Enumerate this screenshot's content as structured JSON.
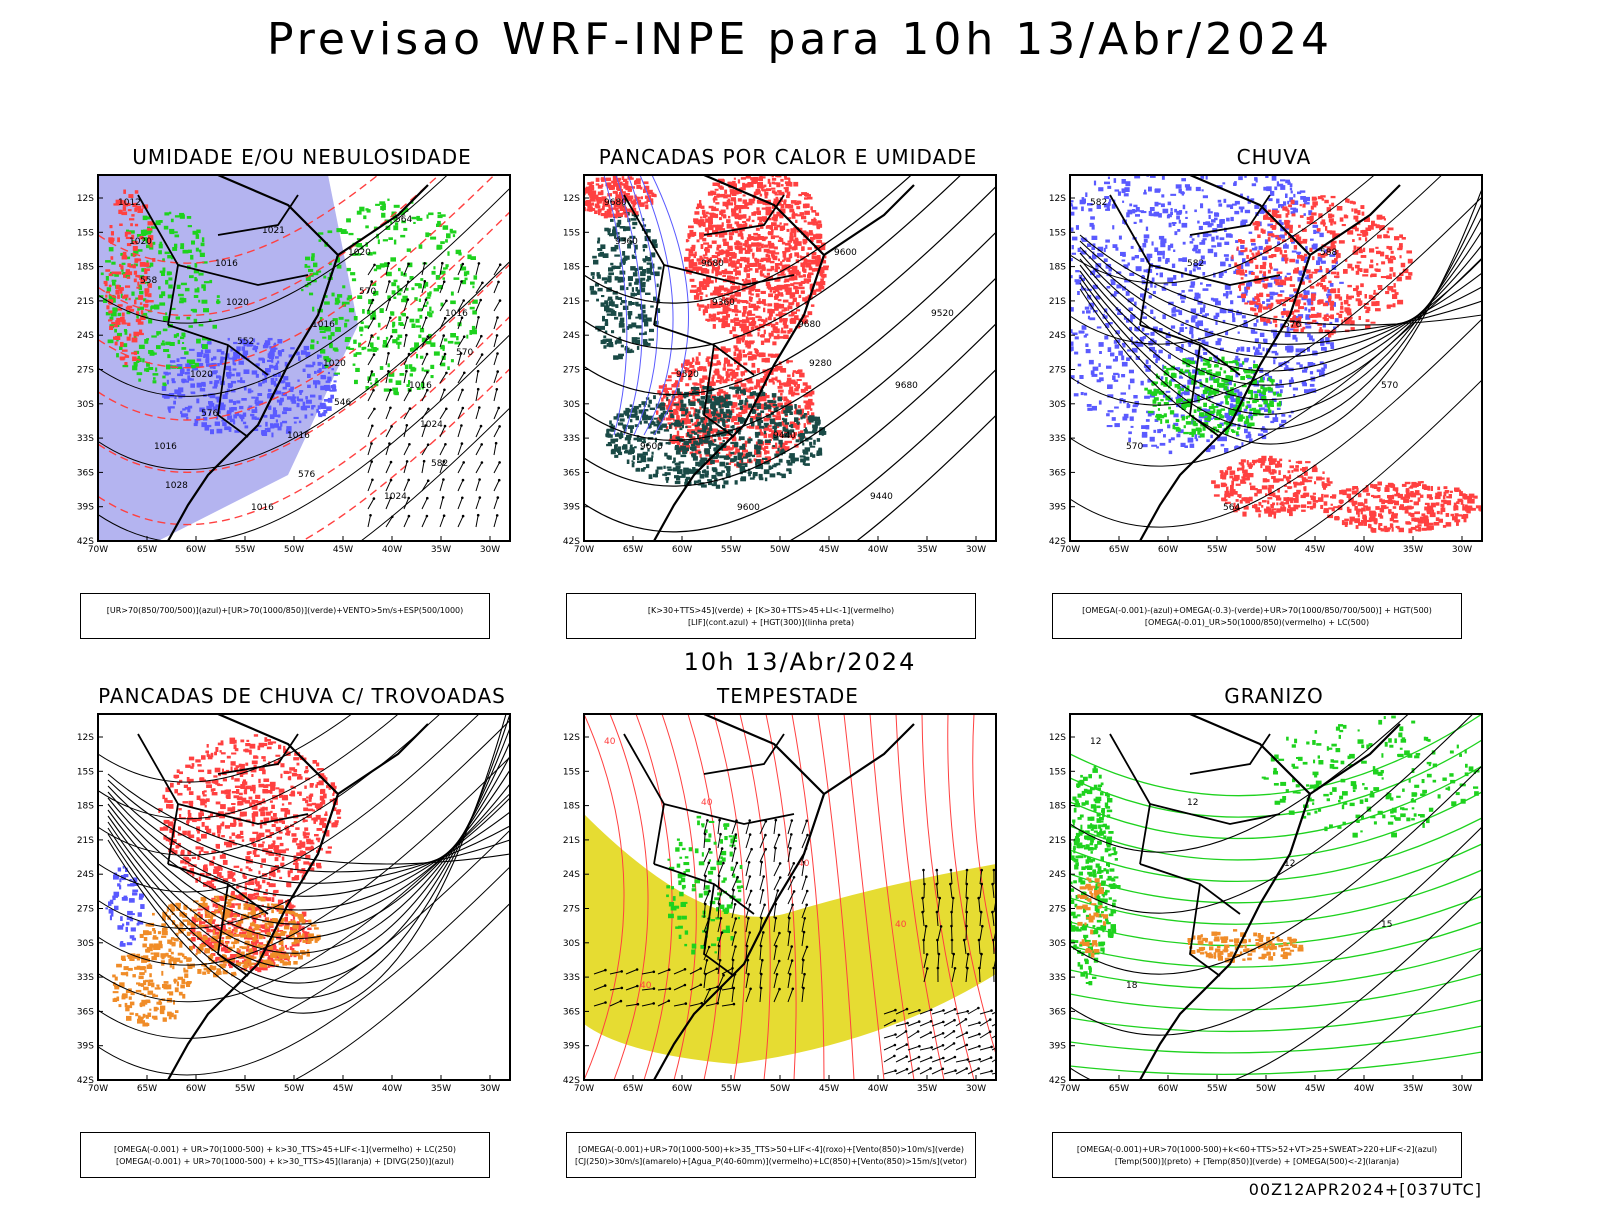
{
  "header": {
    "title": "Previsao WRF-INPE  para 10h 13/Abr/2024"
  },
  "mid": {
    "title": "10h 13/Abr/2024"
  },
  "footer": {
    "run": "00Z12APR2024+[037UTC]"
  },
  "axes": {
    "lat_labels": [
      "12S",
      "15S",
      "18S",
      "21S",
      "24S",
      "27S",
      "30S",
      "33S",
      "36S",
      "39S",
      "42S"
    ],
    "lon_labels": [
      "70W",
      "65W",
      "60W",
      "55W",
      "50W",
      "45W",
      "40W",
      "35W",
      "30W"
    ]
  },
  "colors": {
    "azul": "#5a5aff",
    "azul_claro": "#b4b4f0",
    "verde": "#1ed21e",
    "vermelho": "#ff4040",
    "laranja": "#f08c28",
    "amarelo": "#e6dc32",
    "verde_escuro": "#1a4a46",
    "preto": "#000000"
  },
  "panels": [
    {
      "title": "UMIDADE E/OU NEBULOSIDADE",
      "legend": [
        "[UR>70(850/700/500)](azul)+[UR>70(1000/850)](verde)+VENTO>5m/s+ESP(500/1000)"
      ],
      "labels": [
        "1012",
        "1016",
        "1016",
        "1016",
        "1016",
        "1016",
        "1020",
        "1016",
        "1020",
        "1016",
        "1024",
        "1020",
        "1020",
        "1020",
        "1024",
        "1028",
        "1021",
        "570",
        "570",
        "576",
        "576",
        "564",
        "558",
        "552",
        "546",
        "582"
      ]
    },
    {
      "title": "PANCADAS POR CALOR E UMIDADE",
      "legend": [
        "[K>30+TTS>45](verde) + [K>30+TTS>45+LI<-1](vermelho)",
        "[LIF](cont.azul) + [HGT(300)](linha preta)"
      ],
      "labels": [
        "9680",
        "9680",
        "9680",
        "9680",
        "9600",
        "9600",
        "9600",
        "9520",
        "9520",
        "9440",
        "9440",
        "9360",
        "9360",
        "9280"
      ]
    },
    {
      "title": "CHUVA",
      "legend": [
        "[OMEGA(-0.001)-(azul)+OMEGA(-0.3)-(verde)+UR>70(1000/850/700/500)] + HGT(500)",
        "[OMEGA(-0.01)_UR>50(1000/850)(vermelho) + LC(500)"
      ],
      "labels": [
        "582",
        "582",
        "576",
        "570",
        "570",
        "564",
        "588"
      ]
    },
    {
      "title": "PANCADAS DE CHUVA C/ TROVOADAS",
      "legend": [
        "[OMEGA(-0.001) + UR>70(1000-500) + k>30_TTS>45+LIF<-1](vermelho) + LC(250)",
        "[OMEGA(-0.001) + UR>70(1000-500) + k>30_TTS>45](laranja) + [DIVG(250)](azul)"
      ],
      "labels": []
    },
    {
      "title": "TEMPESTADE",
      "legend": [
        "[OMEGA(-0.001)+UR>70(1000-500)+k>35_TTS>50+LIF<-4](roxo)+[Vento(850)>10m/s](verde)",
        "[CJ(250)>30m/s](amarelo)+[Agua_P(40-60mm)](vermelho)+LC(850)+[Vento(850)>15m/s](vetor)"
      ],
      "labels": [
        "40",
        "40",
        "40",
        "40",
        "40"
      ]
    },
    {
      "title": "GRANIZO",
      "legend": [
        "[OMEGA(-0.001)+UR>70(1000-500)+k<60+TTS>52+VT>25+SWEAT>220+LIF<-2](azul)",
        "[Temp(500)](preto) + [Temp(850)](verde) + [OMEGA(500)<-2](laranja)"
      ],
      "labels": [
        "12",
        "12",
        "12",
        "15",
        "18"
      ]
    }
  ]
}
